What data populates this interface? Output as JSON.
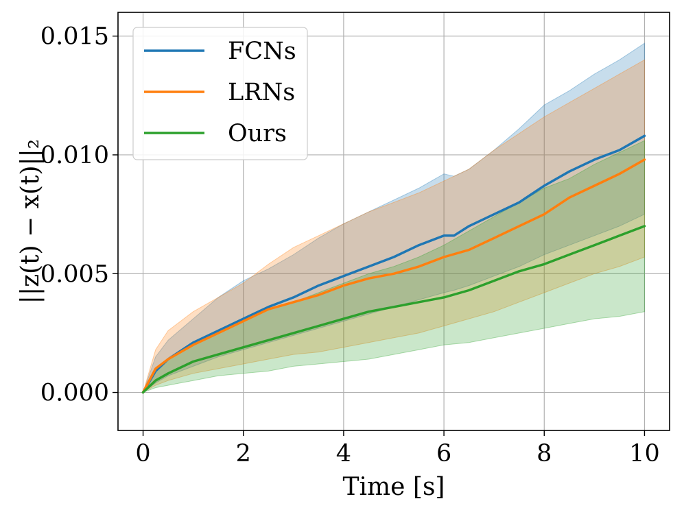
{
  "chart_data": {
    "type": "line",
    "title": "",
    "xlabel": "Time [s]",
    "ylabel": "||z(t) − x(t)||₂",
    "xlim": [
      -0.5,
      10.5
    ],
    "ylim": [
      -0.0016,
      0.016
    ],
    "xticks": [
      0,
      2,
      4,
      6,
      8,
      10
    ],
    "xtick_labels": [
      "0",
      "2",
      "4",
      "6",
      "8",
      "10"
    ],
    "yticks": [
      0.0,
      0.005,
      0.01,
      0.015
    ],
    "ytick_labels": [
      "0.000",
      "0.005",
      "0.010",
      "0.015"
    ],
    "grid": true,
    "legend_position": "top-left",
    "series": [
      {
        "name": "FCNs",
        "color": "#1f77b4",
        "x": [
          0,
          0.25,
          0.5,
          1,
          1.5,
          2,
          2.5,
          3,
          3.5,
          4,
          4.5,
          5,
          5.5,
          6,
          6.2,
          6.5,
          7,
          7.5,
          8,
          8.5,
          9,
          9.5,
          10
        ],
        "mean": [
          0,
          0.0009,
          0.0014,
          0.0021,
          0.0026,
          0.0031,
          0.0036,
          0.004,
          0.0045,
          0.0049,
          0.0053,
          0.0057,
          0.0062,
          0.0066,
          0.0066,
          0.007,
          0.0075,
          0.008,
          0.0087,
          0.0093,
          0.0098,
          0.0102,
          0.0108
        ],
        "lower": [
          0,
          0.0004,
          0.0007,
          0.0011,
          0.0015,
          0.0018,
          0.0021,
          0.0024,
          0.0027,
          0.003,
          0.0033,
          0.0036,
          0.0039,
          0.0042,
          0.0043,
          0.0045,
          0.0049,
          0.0053,
          0.0058,
          0.0062,
          0.0066,
          0.007,
          0.0075
        ],
        "upper": [
          0,
          0.0015,
          0.0022,
          0.0031,
          0.004,
          0.0047,
          0.0052,
          0.0058,
          0.0065,
          0.0071,
          0.0076,
          0.0081,
          0.0086,
          0.0092,
          0.0091,
          0.0094,
          0.0102,
          0.0111,
          0.0121,
          0.0127,
          0.0134,
          0.014,
          0.0147
        ]
      },
      {
        "name": "LRNs",
        "color": "#ff7f0e",
        "x": [
          0,
          0.25,
          0.5,
          1,
          1.5,
          2,
          2.5,
          3,
          3.5,
          4,
          4.5,
          5,
          5.5,
          6,
          6.5,
          7,
          7.5,
          8,
          8.5,
          9,
          9.5,
          10
        ],
        "mean": [
          0,
          0.001,
          0.0014,
          0.002,
          0.0025,
          0.003,
          0.0035,
          0.0038,
          0.0041,
          0.0045,
          0.0048,
          0.005,
          0.0053,
          0.0057,
          0.006,
          0.0065,
          0.007,
          0.0075,
          0.0082,
          0.0087,
          0.0092,
          0.0098
        ],
        "lower": [
          0,
          0.0003,
          0.0005,
          0.0008,
          0.001,
          0.0012,
          0.0014,
          0.0016,
          0.0017,
          0.0019,
          0.0021,
          0.0023,
          0.0025,
          0.0028,
          0.0031,
          0.0034,
          0.0038,
          0.0042,
          0.0046,
          0.005,
          0.0053,
          0.0057
        ],
        "upper": [
          0,
          0.0018,
          0.0026,
          0.0034,
          0.004,
          0.0046,
          0.0054,
          0.0061,
          0.0066,
          0.0071,
          0.0076,
          0.008,
          0.0084,
          0.0089,
          0.0094,
          0.0102,
          0.0109,
          0.0116,
          0.0122,
          0.0128,
          0.0134,
          0.014
        ]
      },
      {
        "name": "Ours",
        "color": "#2ca02c",
        "x": [
          0,
          0.25,
          0.5,
          1,
          1.5,
          2,
          2.5,
          3,
          3.5,
          4,
          4.5,
          5,
          5.5,
          6,
          6.5,
          7,
          7.5,
          8,
          8.5,
          9,
          9.5,
          10
        ],
        "mean": [
          0,
          0.0005,
          0.0008,
          0.0013,
          0.0016,
          0.0019,
          0.0022,
          0.0025,
          0.0028,
          0.0031,
          0.0034,
          0.0036,
          0.0038,
          0.004,
          0.0043,
          0.0047,
          0.0051,
          0.0054,
          0.0058,
          0.0062,
          0.0066,
          0.007
        ],
        "lower": [
          0,
          0.0002,
          0.0003,
          0.0005,
          0.0007,
          0.0008,
          0.0009,
          0.0011,
          0.0012,
          0.0013,
          0.0014,
          0.0016,
          0.0018,
          0.002,
          0.0021,
          0.0023,
          0.0025,
          0.0027,
          0.0029,
          0.0031,
          0.0032,
          0.0034
        ],
        "upper": [
          0,
          0.001,
          0.0014,
          0.0021,
          0.0026,
          0.0031,
          0.0035,
          0.0038,
          0.0042,
          0.0046,
          0.005,
          0.0053,
          0.0057,
          0.0062,
          0.0068,
          0.0074,
          0.008,
          0.0086,
          0.009,
          0.0096,
          0.0101,
          0.0106
        ]
      }
    ]
  }
}
